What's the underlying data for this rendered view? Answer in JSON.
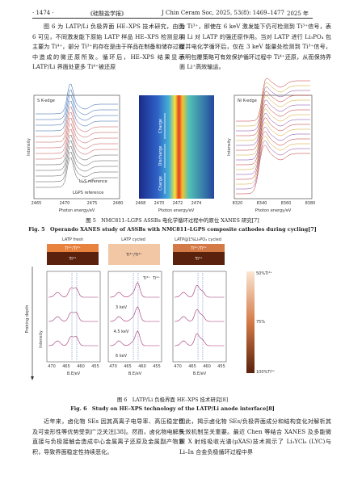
{
  "header": {
    "page": "· 1474 ·",
    "journal": "《硅酸盐学报》",
    "citation": "J Chin Ceram Soc, 2025, 53(8): 1469–1477",
    "year": "2025 年"
  },
  "body_top": {
    "left": "图 6 为 LATP/Li 负极界面 HE–XPS 技术研究，由图 6 可见，不同激发能下原始 LATP 样品 HE–XPS 检测显示主要为 Ti⁴⁺，部分 Ti³⁺的存在是由于样品在制备和储存过程中造成的微还原所致。循环后，HE–XPS 结果显示 LATP/Li 界面处更多 Ti⁴⁺被还原",
    "right": "为 Ti³⁺，即使在 6 keV 激发能下仍可检测到 Ti³⁺信号，表明 Li 对 LATP 的强还原作用。当对 LATP 进行 Li₃PO₄ 包覆并电化学循环后，仅在 3 keV 能量处检测到 Ti³⁺信号，表明包覆策略可有效保护循环过程中 Ti⁴⁺还原，从而保持界面 Li⁺高效输运。"
  },
  "figure5": {
    "left": {
      "label": "S K-edge",
      "ylabel": "Intensity",
      "ref1": "Li₂S reference",
      "ref2": "LGPS reference",
      "xticks": [
        "2465",
        "2470",
        "2475",
        "2480"
      ],
      "xlabel": "Photon energy/eV"
    },
    "middle": {
      "labels": [
        "Charge",
        "Discharge",
        "Charge"
      ],
      "xticks": [
        "2468",
        "2470",
        "2472",
        "2474"
      ],
      "xlabel": "Photon energy/eV"
    },
    "right": {
      "label": "Ni K-edge",
      "ylabel": "Intensity",
      "xticks": [
        "8320",
        "8340",
        "8360",
        "8380"
      ],
      "xlabel": "Photon energy/eV"
    },
    "caption_cn": "图 5　NMC811–LGPS ASSBs 电化学循环过程中的原位 XANES 研究[7]",
    "caption_en": "Fig. 5　Operando XANES study of ASSBs with NMC811–LGPS composite cathodes during cycling[7]"
  },
  "figure6": {
    "columns": [
      "LATP fresh",
      "LATP cycled",
      "LATP@1%Li₃PO₄ cycled"
    ],
    "layers": [
      "Ti⁴⁺/Ti³⁺",
      "Ti⁴⁺",
      "Ti³⁺/Ti⁴⁺",
      "Ti⁴⁺/Ti³⁺",
      "Ti⁴⁺"
    ],
    "depth_label": "Probing depth",
    "ylabel": "Intensity",
    "energies": [
      "3 keV",
      "4.5 keV",
      "6 keV"
    ],
    "peaks": [
      "Ti³⁺",
      "Ti⁴⁺"
    ],
    "colorbar": [
      "50%Ti⁴⁺",
      "75%",
      "100%Ti⁴⁺"
    ],
    "xticks": [
      "470",
      "465",
      "460",
      "455"
    ],
    "xlabel": "B.E/eV",
    "caption_cn": "图 6　LATP/Li 负极界面 HE–XPS 技术研究[8]",
    "caption_en": "Fig. 6　Study on HE–XPS technology of the LATP/Li anode interface[8]"
  },
  "body_bottom": {
    "left": "近年来，卤化物 SEs 因其高离子电导率、高压稳定性及可变形性等优势受到广泛关注[38]。然而，卤化物电解质直接与负极接触会造成中心金属离子还原及金属副产物累积，导致界面稳定性持续恶化。",
    "right": "因此，揭示卤化物 SEs/负极界面成分和结构变化对解析其失效机制至关重要。最近 Chen 等结合 XANES 及多能微探 X 射线吸收光谱(μXAS)技术揭示了 Li₃YCl₆ (LYC)与 Li–In 合金负极循环过程中界"
  }
}
